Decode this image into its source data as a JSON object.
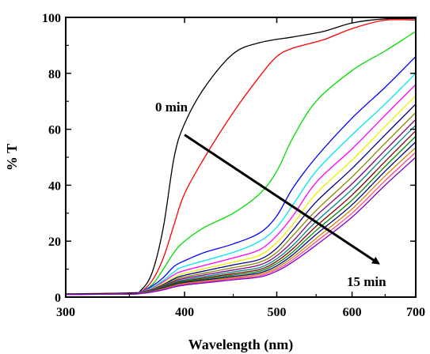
{
  "chart_data": {
    "type": "line",
    "title": "",
    "xlabel": "Wavelength (nm)",
    "ylabel": "% T",
    "x_scale": "log",
    "xlim": [
      300,
      700
    ],
    "ylim": [
      0,
      100
    ],
    "x_ticks": [
      300,
      400,
      500,
      600,
      700
    ],
    "y_ticks": [
      0,
      20,
      40,
      60,
      80,
      100
    ],
    "grid": false,
    "legend": "none",
    "annotations": [
      {
        "text": "0 min"
      },
      {
        "text": "15 min"
      }
    ],
    "arrow": {
      "from": [
        400,
        58
      ],
      "to": [
        640,
        12
      ]
    },
    "series": [
      {
        "color": "#000000",
        "points": [
          [
            300,
            1.2
          ],
          [
            350,
            1.5
          ],
          [
            360,
            2.5
          ],
          [
            370,
            9
          ],
          [
            380,
            25
          ],
          [
            390,
            50
          ],
          [
            400,
            62
          ],
          [
            420,
            75
          ],
          [
            450,
            87
          ],
          [
            480,
            91
          ],
          [
            520,
            93
          ],
          [
            560,
            95
          ],
          [
            600,
            98
          ],
          [
            650,
            99.5
          ],
          [
            700,
            99.5
          ]
        ]
      },
      {
        "color": "#ff0000",
        "points": [
          [
            300,
            1
          ],
          [
            350,
            1.3
          ],
          [
            360,
            2
          ],
          [
            370,
            6
          ],
          [
            380,
            14
          ],
          [
            390,
            26
          ],
          [
            400,
            37
          ],
          [
            420,
            50
          ],
          [
            450,
            66
          ],
          [
            480,
            79
          ],
          [
            500,
            86
          ],
          [
            520,
            89
          ],
          [
            560,
            92
          ],
          [
            600,
            96
          ],
          [
            650,
            99
          ],
          [
            700,
            99
          ]
        ]
      },
      {
        "color": "#00dd00",
        "points": [
          [
            300,
            1
          ],
          [
            350,
            1.2
          ],
          [
            360,
            2
          ],
          [
            370,
            4.5
          ],
          [
            380,
            10
          ],
          [
            390,
            16
          ],
          [
            400,
            20
          ],
          [
            420,
            25
          ],
          [
            450,
            30
          ],
          [
            480,
            37
          ],
          [
            500,
            45
          ],
          [
            520,
            57
          ],
          [
            550,
            70
          ],
          [
            600,
            81
          ],
          [
            650,
            88
          ],
          [
            700,
            95
          ]
        ]
      },
      {
        "color": "#0000ff",
        "points": [
          [
            300,
            1
          ],
          [
            350,
            1.2
          ],
          [
            360,
            2
          ],
          [
            370,
            4
          ],
          [
            380,
            7
          ],
          [
            390,
            11
          ],
          [
            400,
            13
          ],
          [
            420,
            16
          ],
          [
            450,
            19
          ],
          [
            480,
            23
          ],
          [
            500,
            29
          ],
          [
            520,
            39
          ],
          [
            550,
            50
          ],
          [
            600,
            64
          ],
          [
            650,
            75
          ],
          [
            700,
            86
          ]
        ]
      },
      {
        "color": "#00e5ee",
        "points": [
          [
            300,
            1
          ],
          [
            350,
            1.2
          ],
          [
            360,
            2
          ],
          [
            370,
            3.5
          ],
          [
            380,
            6
          ],
          [
            390,
            9
          ],
          [
            400,
            11
          ],
          [
            450,
            16
          ],
          [
            480,
            20
          ],
          [
            500,
            25
          ],
          [
            520,
            33
          ],
          [
            550,
            45
          ],
          [
            600,
            58
          ],
          [
            650,
            69
          ],
          [
            700,
            80
          ]
        ]
      },
      {
        "color": "#ff00ff",
        "points": [
          [
            300,
            1
          ],
          [
            350,
            1.2
          ],
          [
            360,
            2
          ],
          [
            370,
            3.2
          ],
          [
            380,
            5.5
          ],
          [
            390,
            8
          ],
          [
            400,
            9.5
          ],
          [
            450,
            14
          ],
          [
            480,
            17
          ],
          [
            500,
            22
          ],
          [
            520,
            29
          ],
          [
            550,
            41
          ],
          [
            600,
            53
          ],
          [
            650,
            65
          ],
          [
            700,
            76
          ]
        ]
      },
      {
        "color": "#eeee00",
        "points": [
          [
            300,
            1
          ],
          [
            350,
            1.2
          ],
          [
            360,
            1.8
          ],
          [
            370,
            3
          ],
          [
            380,
            5
          ],
          [
            390,
            7
          ],
          [
            400,
            8.5
          ],
          [
            450,
            12.5
          ],
          [
            480,
            15
          ],
          [
            500,
            19.5
          ],
          [
            520,
            26
          ],
          [
            550,
            37
          ],
          [
            600,
            49
          ],
          [
            650,
            61
          ],
          [
            700,
            72
          ]
        ]
      },
      {
        "color": "#000088",
        "points": [
          [
            300,
            1
          ],
          [
            350,
            1.2
          ],
          [
            360,
            1.8
          ],
          [
            370,
            2.8
          ],
          [
            380,
            4.5
          ],
          [
            390,
            6.5
          ],
          [
            400,
            7.8
          ],
          [
            450,
            11.5
          ],
          [
            480,
            13.5
          ],
          [
            500,
            17.5
          ],
          [
            520,
            24
          ],
          [
            550,
            34
          ],
          [
            600,
            46
          ],
          [
            650,
            58
          ],
          [
            700,
            69
          ]
        ]
      },
      {
        "color": "#888800",
        "points": [
          [
            300,
            1
          ],
          [
            350,
            1.1
          ],
          [
            360,
            1.7
          ],
          [
            370,
            2.6
          ],
          [
            380,
            4.2
          ],
          [
            390,
            6
          ],
          [
            400,
            7.2
          ],
          [
            450,
            10.5
          ],
          [
            480,
            12.5
          ],
          [
            500,
            16
          ],
          [
            520,
            22
          ],
          [
            550,
            31
          ],
          [
            600,
            43
          ],
          [
            650,
            55
          ],
          [
            700,
            66
          ]
        ]
      },
      {
        "color": "#880088",
        "points": [
          [
            300,
            1
          ],
          [
            350,
            1.1
          ],
          [
            360,
            1.6
          ],
          [
            370,
            2.5
          ],
          [
            380,
            4
          ],
          [
            390,
            5.6
          ],
          [
            400,
            6.7
          ],
          [
            450,
            9.7
          ],
          [
            480,
            11.5
          ],
          [
            500,
            14.8
          ],
          [
            520,
            20
          ],
          [
            550,
            29
          ],
          [
            600,
            40.5
          ],
          [
            650,
            52.5
          ],
          [
            700,
            63.5
          ]
        ]
      },
      {
        "color": "#008888",
        "points": [
          [
            300,
            1
          ],
          [
            350,
            1.1
          ],
          [
            360,
            1.6
          ],
          [
            370,
            2.4
          ],
          [
            380,
            3.8
          ],
          [
            390,
            5.2
          ],
          [
            400,
            6.2
          ],
          [
            450,
            9
          ],
          [
            480,
            10.6
          ],
          [
            500,
            13.7
          ],
          [
            520,
            18.5
          ],
          [
            550,
            27
          ],
          [
            600,
            38.5
          ],
          [
            650,
            50.5
          ],
          [
            700,
            61.5
          ]
        ]
      },
      {
        "color": "#880000",
        "points": [
          [
            300,
            1
          ],
          [
            350,
            1.1
          ],
          [
            360,
            1.5
          ],
          [
            370,
            2.3
          ],
          [
            380,
            3.6
          ],
          [
            390,
            4.9
          ],
          [
            400,
            5.8
          ],
          [
            450,
            8.4
          ],
          [
            480,
            9.9
          ],
          [
            500,
            12.8
          ],
          [
            520,
            17.3
          ],
          [
            550,
            25.3
          ],
          [
            600,
            36.5
          ],
          [
            650,
            48.5
          ],
          [
            700,
            59.5
          ]
        ]
      },
      {
        "color": "#008800",
        "points": [
          [
            300,
            1
          ],
          [
            350,
            1.1
          ],
          [
            360,
            1.5
          ],
          [
            370,
            2.2
          ],
          [
            380,
            3.4
          ],
          [
            390,
            4.6
          ],
          [
            400,
            5.5
          ],
          [
            450,
            7.9
          ],
          [
            480,
            9.3
          ],
          [
            500,
            12
          ],
          [
            520,
            16.2
          ],
          [
            550,
            23.8
          ],
          [
            600,
            34.7
          ],
          [
            650,
            46.7
          ],
          [
            700,
            57.5
          ]
        ]
      },
      {
        "color": "#000088",
        "points": [
          [
            300,
            1
          ],
          [
            350,
            1.1
          ],
          [
            360,
            1.4
          ],
          [
            370,
            2.1
          ],
          [
            380,
            3.2
          ],
          [
            390,
            4.3
          ],
          [
            400,
            5.2
          ],
          [
            450,
            7.4
          ],
          [
            480,
            8.7
          ],
          [
            500,
            11.2
          ],
          [
            520,
            15.2
          ],
          [
            550,
            22.4
          ],
          [
            600,
            33
          ],
          [
            650,
            45
          ],
          [
            700,
            55.5
          ]
        ]
      },
      {
        "color": "#cc8800",
        "points": [
          [
            300,
            1
          ],
          [
            350,
            1.1
          ],
          [
            360,
            1.4
          ],
          [
            370,
            2
          ],
          [
            380,
            3
          ],
          [
            390,
            4.1
          ],
          [
            400,
            4.9
          ],
          [
            450,
            7
          ],
          [
            480,
            8.2
          ],
          [
            500,
            10.5
          ],
          [
            520,
            14.3
          ],
          [
            550,
            21
          ],
          [
            600,
            31.5
          ],
          [
            650,
            43.3
          ],
          [
            700,
            53.5
          ]
        ]
      },
      {
        "color": "#ff4488",
        "points": [
          [
            300,
            1
          ],
          [
            350,
            1.1
          ],
          [
            360,
            1.3
          ],
          [
            370,
            1.9
          ],
          [
            380,
            2.8
          ],
          [
            390,
            3.8
          ],
          [
            400,
            4.6
          ],
          [
            450,
            6.6
          ],
          [
            480,
            7.7
          ],
          [
            500,
            9.9
          ],
          [
            520,
            13.4
          ],
          [
            550,
            19.8
          ],
          [
            600,
            30
          ],
          [
            650,
            41.6
          ],
          [
            700,
            51.8
          ]
        ]
      },
      {
        "color": "#7700cc",
        "points": [
          [
            300,
            1
          ],
          [
            350,
            1.1
          ],
          [
            360,
            1.3
          ],
          [
            370,
            1.8
          ],
          [
            380,
            2.6
          ],
          [
            390,
            3.6
          ],
          [
            400,
            4.3
          ],
          [
            450,
            6.2
          ],
          [
            480,
            7.2
          ],
          [
            500,
            9.3
          ],
          [
            520,
            12.6
          ],
          [
            550,
            18.6
          ],
          [
            600,
            28.6
          ],
          [
            650,
            40
          ],
          [
            700,
            50
          ]
        ]
      }
    ]
  }
}
